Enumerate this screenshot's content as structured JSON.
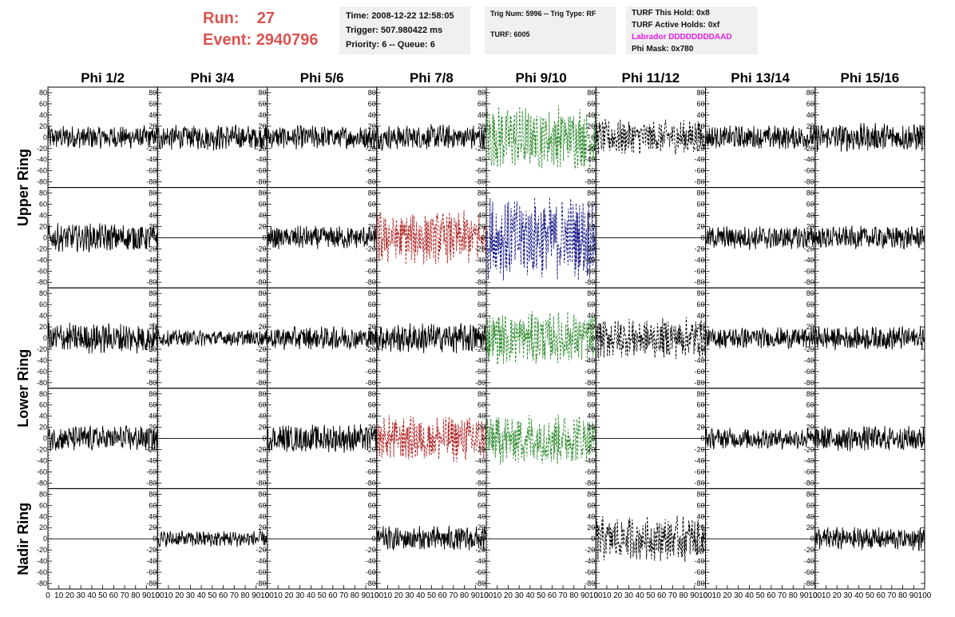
{
  "header": {
    "run_label": "Run:",
    "run_value": "27",
    "event_label": "Event:",
    "event_value": "2940796",
    "time": "Time: 2008-12-22 12:58:05",
    "trigger": "Trigger: 507.980422 ms",
    "priority": "Priority: 6 -- Queue: 6",
    "trig_num": "Trig Num: 5996 -- Trig Type: RF",
    "turf": "TURF: 6005",
    "turf_hold": "TURF This Hold: 0x8",
    "turf_active": "TURF Active Holds: 0xf",
    "labrador": "Labrador DDDDDDDDAAD",
    "phi_mask": "Phi Mask: 0x780"
  },
  "colors": {
    "header_red": "#d9534f",
    "labrador_magenta": "#e020e0",
    "trace_black": "#000000",
    "trace_green": "#2e8b2e",
    "trace_red": "#b22222",
    "trace_blue": "#1c1c8c",
    "box_bg": "#f0f0f0"
  },
  "chart_data": {
    "type": "line",
    "columns": [
      "Phi 1/2",
      "Phi 3/4",
      "Phi 5/6",
      "Phi 7/8",
      "Phi 9/10",
      "Phi 11/12",
      "Phi 13/14",
      "Phi 15/16"
    ],
    "rows": [
      "Upper Ring",
      "Lower Ring",
      "Nadir Ring"
    ],
    "ylim": [
      -90,
      90
    ],
    "yticks": [
      80,
      60,
      40,
      20,
      0,
      -20,
      -40,
      -60,
      -80
    ],
    "xlim": [
      0,
      100
    ],
    "xticks": [
      0,
      10,
      20,
      30,
      40,
      50,
      60,
      70,
      80,
      90,
      100
    ],
    "xtick_labels": [
      "0",
      "10",
      "20",
      "30",
      "40",
      "50",
      "60",
      "70",
      "80",
      "90",
      "100"
    ],
    "panel_rows": [
      [
        {
          "style": "black-solid",
          "amplitude": 20
        },
        {
          "style": "black-solid",
          "amplitude": 22
        },
        {
          "style": "black-solid",
          "amplitude": 20
        },
        {
          "style": "black-solid",
          "amplitude": 22
        },
        {
          "style": "green-dashed",
          "amplitude": 55
        },
        {
          "style": "black-dashed",
          "amplitude": 30
        },
        {
          "style": "black-solid",
          "amplitude": 20
        },
        {
          "style": "black-solid",
          "amplitude": 24
        }
      ],
      [
        {
          "style": "black-solid",
          "amplitude": 24
        },
        {
          "style": "flat",
          "amplitude": 0
        },
        {
          "style": "black-solid",
          "amplitude": 20
        },
        {
          "style": "red-dashed",
          "amplitude": 45
        },
        {
          "style": "blue-dashed",
          "amplitude": 70
        },
        {
          "style": "flat",
          "amplitude": 0
        },
        {
          "style": "black-solid",
          "amplitude": 20
        },
        {
          "style": "black-solid",
          "amplitude": 20
        }
      ],
      [
        {
          "style": "black-solid",
          "amplitude": 26
        },
        {
          "style": "black-solid",
          "amplitude": 14
        },
        {
          "style": "black-solid",
          "amplitude": 20
        },
        {
          "style": "black-solid",
          "amplitude": 26
        },
        {
          "style": "green-dashed",
          "amplitude": 45
        },
        {
          "style": "black-dashed",
          "amplitude": 35
        },
        {
          "style": "black-solid",
          "amplitude": 18
        },
        {
          "style": "black-solid",
          "amplitude": 20
        }
      ],
      [
        {
          "style": "black-solid",
          "amplitude": 22
        },
        {
          "style": "flat",
          "amplitude": 0
        },
        {
          "style": "black-solid",
          "amplitude": 24
        },
        {
          "style": "red-dashed",
          "amplitude": 40
        },
        {
          "style": "green-dashed",
          "amplitude": 45
        },
        {
          "style": "flat",
          "amplitude": 0
        },
        {
          "style": "black-solid",
          "amplitude": 18
        },
        {
          "style": "black-solid",
          "amplitude": 22
        }
      ],
      [
        {
          "style": "flat",
          "amplitude": 0
        },
        {
          "style": "black-solid",
          "amplitude": 14
        },
        {
          "style": "flat",
          "amplitude": 0
        },
        {
          "style": "black-solid",
          "amplitude": 22
        },
        {
          "style": "flat",
          "amplitude": 0
        },
        {
          "style": "black-dashed",
          "amplitude": 38
        },
        {
          "style": "flat",
          "amplitude": 0
        },
        {
          "style": "black-solid",
          "amplitude": 20
        }
      ]
    ]
  }
}
